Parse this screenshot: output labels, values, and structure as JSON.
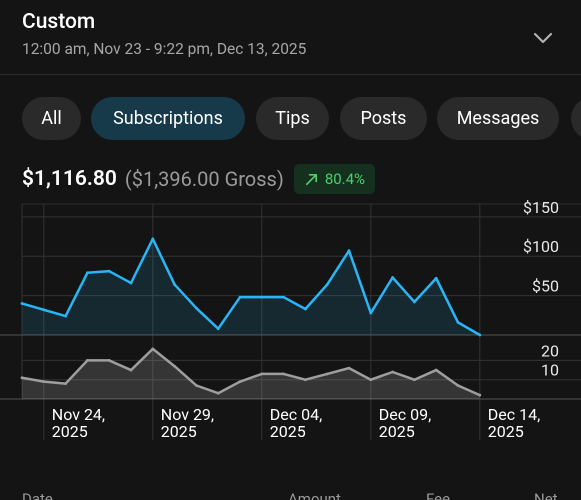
{
  "header": {
    "title": "Custom",
    "date_range": "12:00 am, Nov 23 - 9:22 pm, Dec 13, 2025",
    "dropdown_icon": "chevron-down-icon"
  },
  "tabs": [
    {
      "label": "All",
      "active": false
    },
    {
      "label": "Subscriptions",
      "active": true
    },
    {
      "label": "Tips",
      "active": false
    },
    {
      "label": "Posts",
      "active": false
    },
    {
      "label": "Messages",
      "active": false
    }
  ],
  "summary": {
    "net": "$1,116.80",
    "gross": "($1,396.00 Gross)",
    "change": "80.4%",
    "change_icon": "trend-up-arrow-icon",
    "change_color": "#4cd06a"
  },
  "colors": {
    "background": "#141414",
    "accent": "#29b6f6",
    "active_tab": "#163a4a",
    "secondary_line": "#9e9e9e"
  },
  "chart_data": {
    "type": "area",
    "x": [
      "Nov 23",
      "Nov 24",
      "Nov 25",
      "Nov 26",
      "Nov 27",
      "Nov 28",
      "Nov 29",
      "Nov 30",
      "Dec 01",
      "Dec 02",
      "Dec 03",
      "Dec 04",
      "Dec 05",
      "Dec 06",
      "Dec 07",
      "Dec 08",
      "Dec 09",
      "Dec 10",
      "Dec 11",
      "Dec 12",
      "Dec 13",
      "Dec 14"
    ],
    "x_tick_labels": [
      {
        "date": "Nov 24",
        "line1": "Nov 24,",
        "line2": "2025"
      },
      {
        "date": "Nov 29",
        "line1": "Nov 29,",
        "line2": "2025"
      },
      {
        "date": "Dec 04",
        "line1": "Dec 04,",
        "line2": "2025"
      },
      {
        "date": "Dec 09",
        "line1": "Dec 09,",
        "line2": "2025"
      },
      {
        "date": "Dec 14",
        "line1": "Dec 14,",
        "line2": "2025"
      }
    ],
    "series": [
      {
        "values": [
          40,
          32,
          24,
          79,
          81,
          66,
          122,
          64,
          34,
          8,
          48,
          48,
          48,
          33,
          64,
          107,
          28,
          73,
          42,
          72,
          16,
          0
        ],
        "ylim": [
          0,
          165
        ],
        "yticks": [
          "$50",
          "$100",
          "$150"
        ],
        "ytick_values": [
          50,
          100,
          150
        ]
      },
      {
        "values": [
          11,
          9,
          8,
          20,
          20,
          15,
          26,
          17,
          7,
          3,
          9,
          13,
          13,
          10,
          13,
          16,
          10,
          14,
          10,
          15,
          7,
          2
        ],
        "ylim": [
          0,
          28
        ],
        "yticks": [
          "10",
          "20"
        ],
        "ytick_values": [
          10,
          20
        ]
      }
    ],
    "grid": true
  },
  "table_header": {
    "date": "Date",
    "amount": "Amount",
    "fee": "Fee",
    "net": "Net"
  }
}
